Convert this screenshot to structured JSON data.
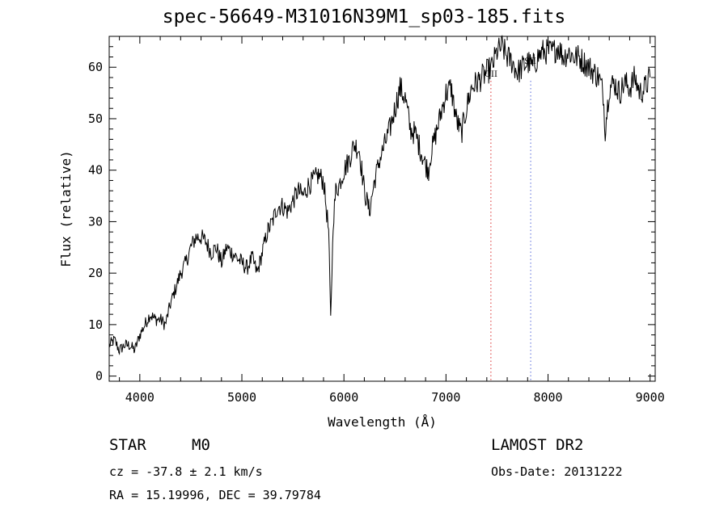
{
  "title": "spec-56649-M31016N39M1_sp03-185.fits",
  "chart_data": {
    "type": "line",
    "title": "spec-56649-M31016N39M1_sp03-185.fits",
    "xlabel": "Wavelength (Å)",
    "ylabel": "Flux (relative)",
    "xlim": [
      3700,
      9050
    ],
    "ylim": [
      -1,
      66
    ],
    "xticks": [
      4000,
      5000,
      6000,
      7000,
      8000,
      9000
    ],
    "yticks": [
      0,
      10,
      20,
      30,
      40,
      50,
      60
    ],
    "grid": false,
    "series": [
      {
        "color": "#000000",
        "x": [
          3700,
          3750,
          3800,
          3850,
          3900,
          3950,
          4000,
          4050,
          4100,
          4150,
          4200,
          4250,
          4300,
          4350,
          4400,
          4450,
          4500,
          4550,
          4600,
          4650,
          4700,
          4750,
          4800,
          4850,
          4900,
          4950,
          5000,
          5050,
          5100,
          5150,
          5200,
          5250,
          5300,
          5350,
          5400,
          5450,
          5500,
          5550,
          5600,
          5650,
          5700,
          5750,
          5800,
          5850,
          5870,
          5895,
          5920,
          5950,
          6000,
          6050,
          6100,
          6150,
          6200,
          6250,
          6300,
          6350,
          6400,
          6450,
          6500,
          6550,
          6600,
          6650,
          6700,
          6750,
          6800,
          6830,
          6850,
          6900,
          6950,
          7000,
          7050,
          7100,
          7150,
          7200,
          7250,
          7300,
          7350,
          7400,
          7450,
          7500,
          7550,
          7600,
          7650,
          7700,
          7750,
          7800,
          7850,
          7900,
          7950,
          8000,
          8050,
          8100,
          8150,
          8200,
          8250,
          8300,
          8350,
          8400,
          8450,
          8500,
          8540,
          8560,
          8600,
          8650,
          8700,
          8750,
          8800,
          8850,
          8900,
          8950,
          9000
        ],
        "y": [
          6,
          7,
          5,
          6,
          6,
          5,
          8,
          10,
          12,
          11,
          11,
          10,
          14,
          17,
          20,
          22,
          25,
          27,
          27,
          26,
          24,
          25,
          22,
          25,
          24,
          23,
          22,
          21,
          23,
          20,
          24,
          28,
          30,
          33,
          33,
          32,
          34,
          36,
          35,
          37,
          38,
          39,
          38,
          28,
          11,
          30,
          36,
          37,
          40,
          42,
          45,
          44,
          36,
          32,
          38,
          42,
          45,
          48,
          52,
          56,
          54,
          48,
          47,
          44,
          41,
          40,
          43,
          47,
          51,
          55,
          56,
          50,
          47,
          52,
          56,
          57,
          58,
          59,
          60,
          63,
          64,
          62,
          61,
          59,
          60,
          61,
          60,
          62,
          63,
          63,
          63,
          64,
          62,
          63,
          62,
          62,
          61,
          60,
          59,
          58,
          55,
          48,
          56,
          57,
          55,
          57,
          56,
          58,
          55,
          56,
          58
        ]
      }
    ],
    "annotations": [
      {
        "label": "OII",
        "x": 7440,
        "color": "#e05050"
      },
      {
        "label": "SII",
        "x": 7830,
        "color": "#7080e0"
      }
    ]
  },
  "info": {
    "class": "STAR",
    "subclass": "M0",
    "cz": "cz = -37.8 ± 2.1 km/s",
    "radec": "RA =  15.19996, DEC =  39.79784",
    "survey": "LAMOST DR2",
    "obsdate": "Obs-Date: 20131222"
  }
}
